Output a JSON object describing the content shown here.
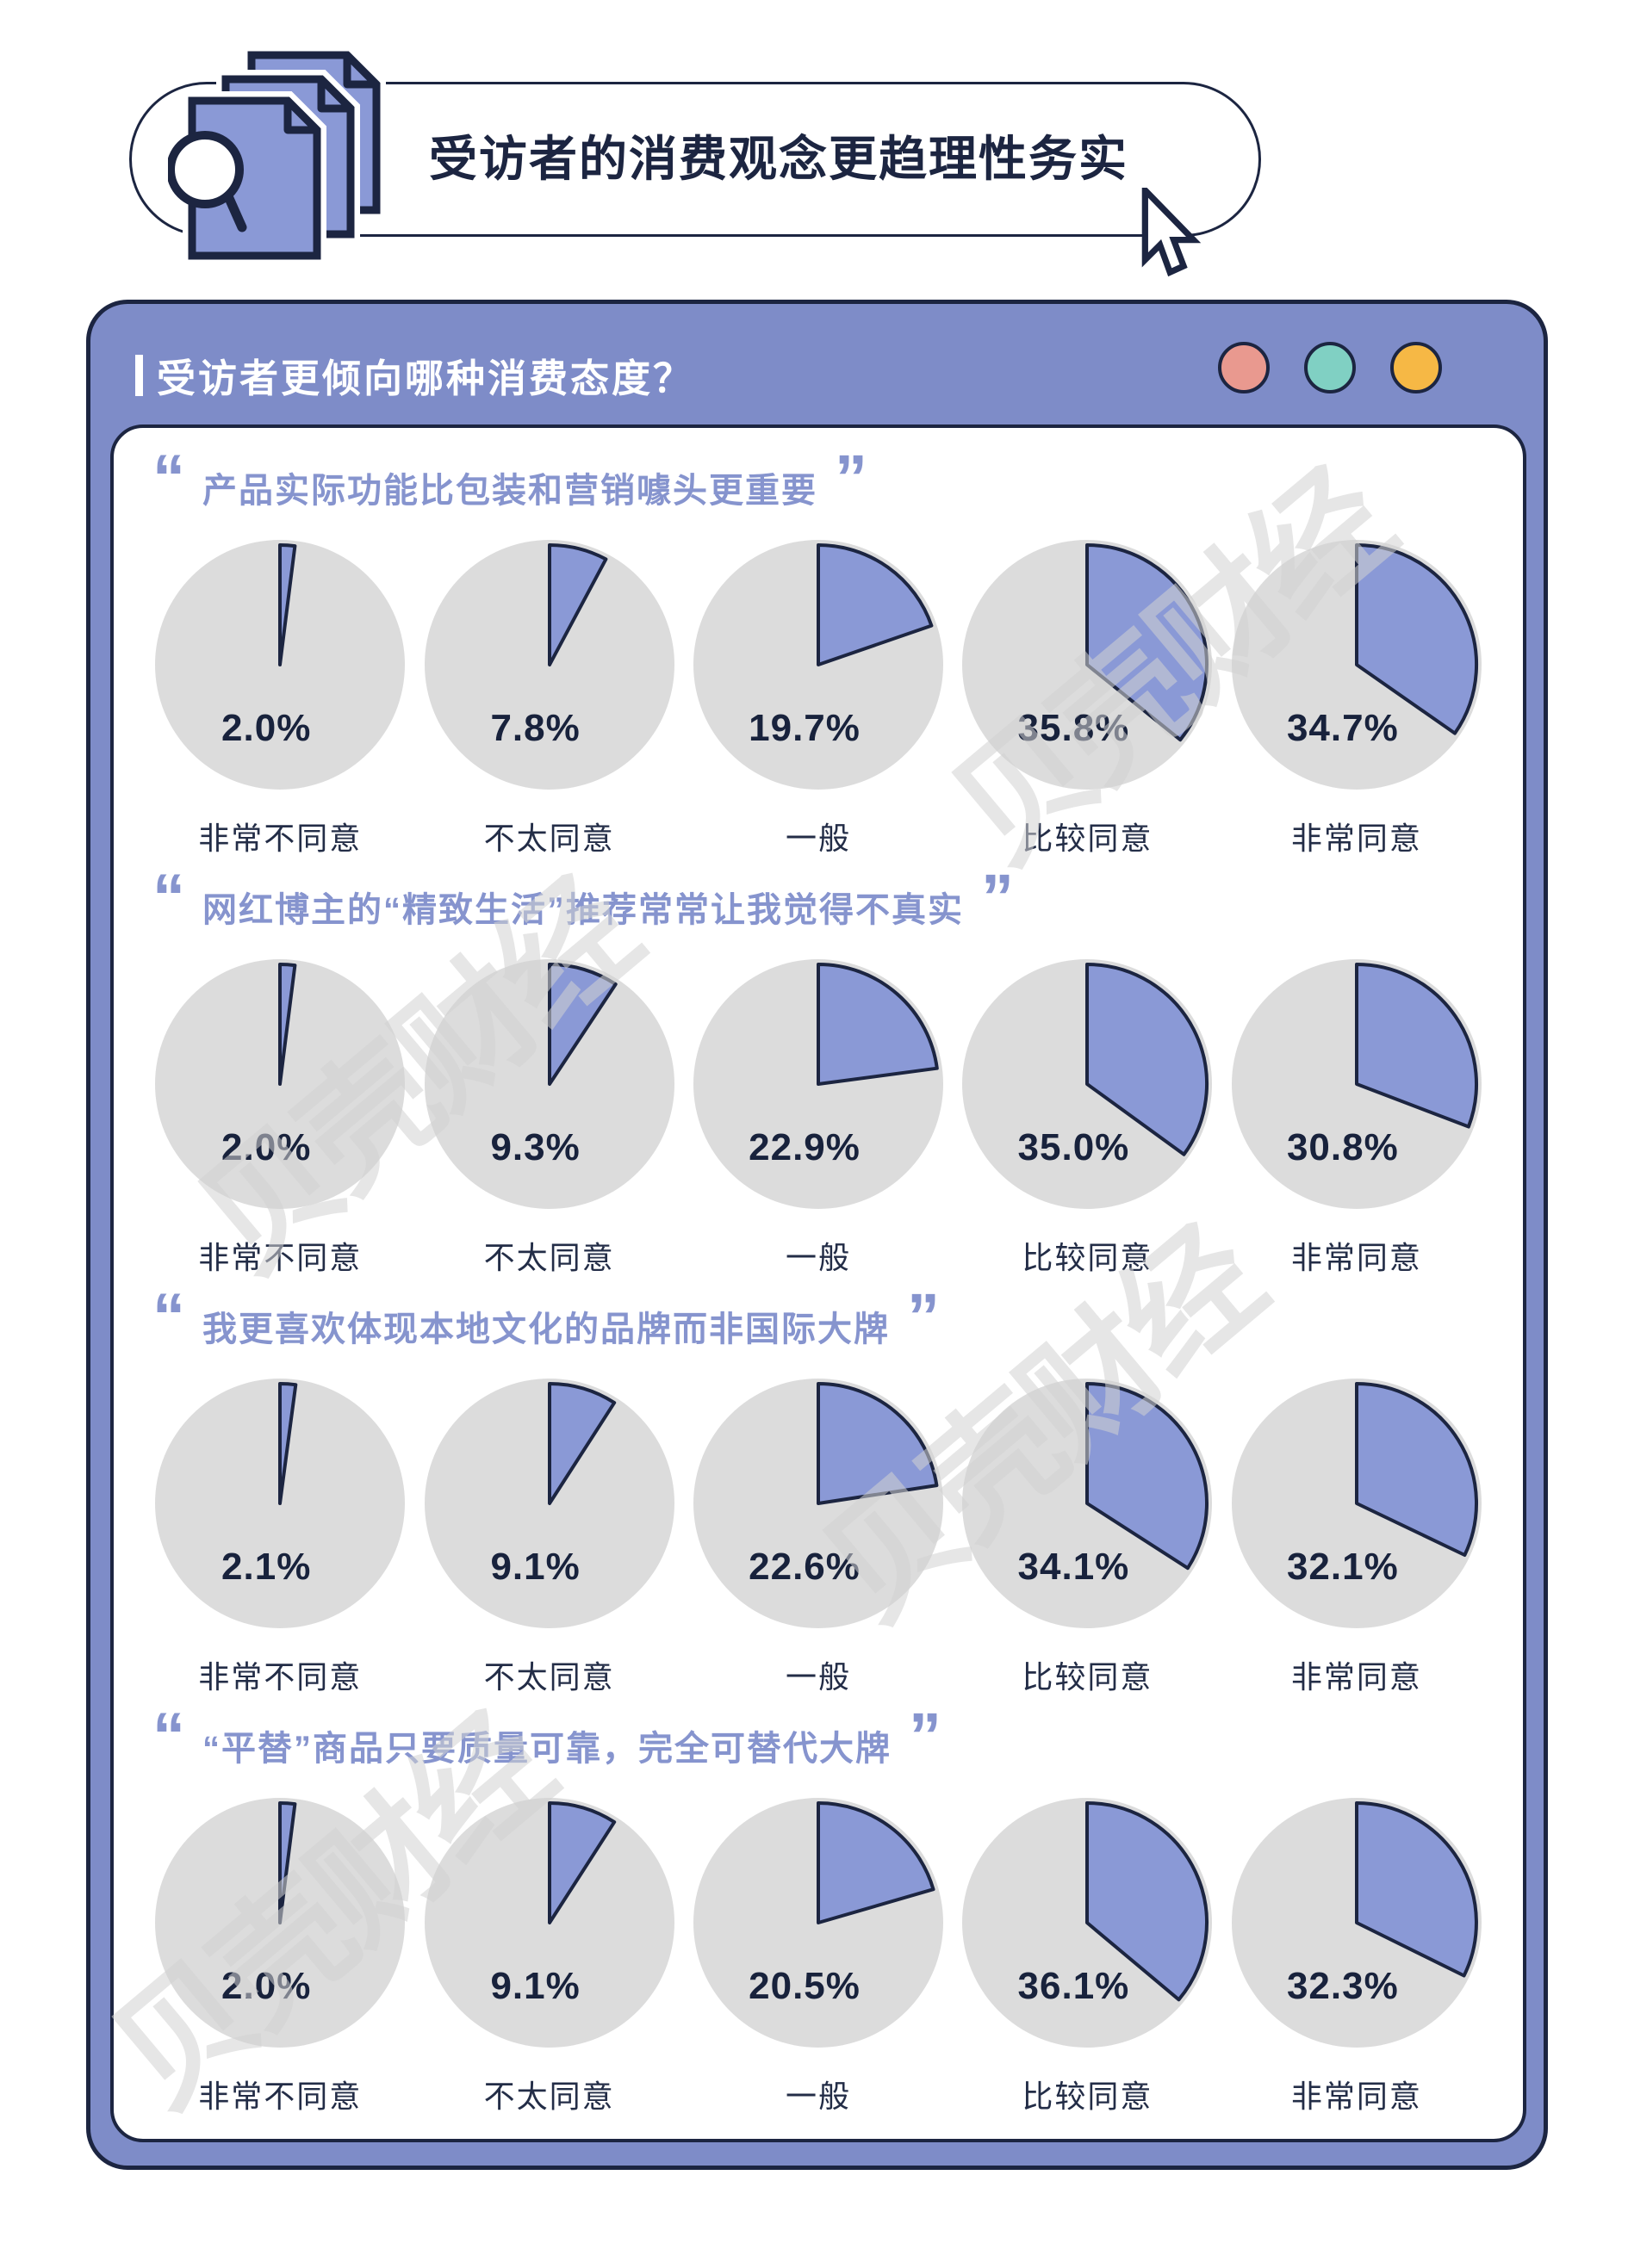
{
  "theme": {
    "cardPurple": "#7E8CC8",
    "slicePurple": "#8A99D6",
    "pieGray": "#DCDCDC",
    "navy": "#1C2541",
    "textDark": "#18223C",
    "titlePurple": "#8694CE",
    "watermark": "#D2D2D2"
  },
  "header": {
    "title": "受访者的消费观念更趋理性务实"
  },
  "card": {
    "title": "受访者更倾向哪种消费态度？",
    "dots": [
      {
        "name": "red",
        "color": "#E9998F"
      },
      {
        "name": "teal",
        "color": "#80D0C3"
      },
      {
        "name": "orange",
        "color": "#F6B845"
      }
    ]
  },
  "quote_marks": {
    "open": "“",
    "close": "”"
  },
  "likert_labels": [
    "非常不同意",
    "不太同意",
    "一般",
    "比较同意",
    "非常同意"
  ],
  "sections": [
    {
      "quote": "产品实际功能比包装和营销噱头更重要",
      "values": [
        2.0,
        7.8,
        19.7,
        35.8,
        34.7
      ]
    },
    {
      "quote": "网红博主的“精致生活”推荐常常让我觉得不真实",
      "values": [
        2.0,
        9.3,
        22.9,
        35.0,
        30.8
      ]
    },
    {
      "quote": "我更喜欢体现本地文化的品牌而非国际大牌",
      "values": [
        2.1,
        9.1,
        22.6,
        34.1,
        32.1
      ]
    },
    {
      "quote": "“平替”商品只要质量可靠，完全可替代大牌",
      "values": [
        2.0,
        9.1,
        20.5,
        36.1,
        32.3
      ]
    }
  ],
  "watermark": {
    "text": "贝壳财经"
  },
  "chart_data": [
    {
      "type": "pie",
      "title": "产品实际功能比包装和营销噱头更重要",
      "categories": [
        "非常不同意",
        "不太同意",
        "一般",
        "比较同意",
        "非常同意"
      ],
      "values": [
        2.0,
        7.8,
        19.7,
        35.8,
        34.7
      ],
      "unit": "%",
      "note": "each category drawn as its own mini pie: purple slice = value, gray = remainder, slice starts at 12 o'clock clockwise"
    },
    {
      "type": "pie",
      "title": "网红博主的“精致生活”推荐常常让我觉得不真实",
      "categories": [
        "非常不同意",
        "不太同意",
        "一般",
        "比较同意",
        "非常同意"
      ],
      "values": [
        2.0,
        9.3,
        22.9,
        35.0,
        30.8
      ],
      "unit": "%"
    },
    {
      "type": "pie",
      "title": "我更喜欢体现本地文化的品牌而非国际大牌",
      "categories": [
        "非常不同意",
        "不太同意",
        "一般",
        "比较同意",
        "非常同意"
      ],
      "values": [
        2.1,
        9.1,
        22.6,
        34.1,
        32.1
      ],
      "unit": "%"
    },
    {
      "type": "pie",
      "title": "“平替”商品只要质量可靠，完全可替代大牌",
      "categories": [
        "非常不同意",
        "不太同意",
        "一般",
        "比较同意",
        "非常同意"
      ],
      "values": [
        2.0,
        9.1,
        20.5,
        36.1,
        32.3
      ],
      "unit": "%"
    }
  ]
}
